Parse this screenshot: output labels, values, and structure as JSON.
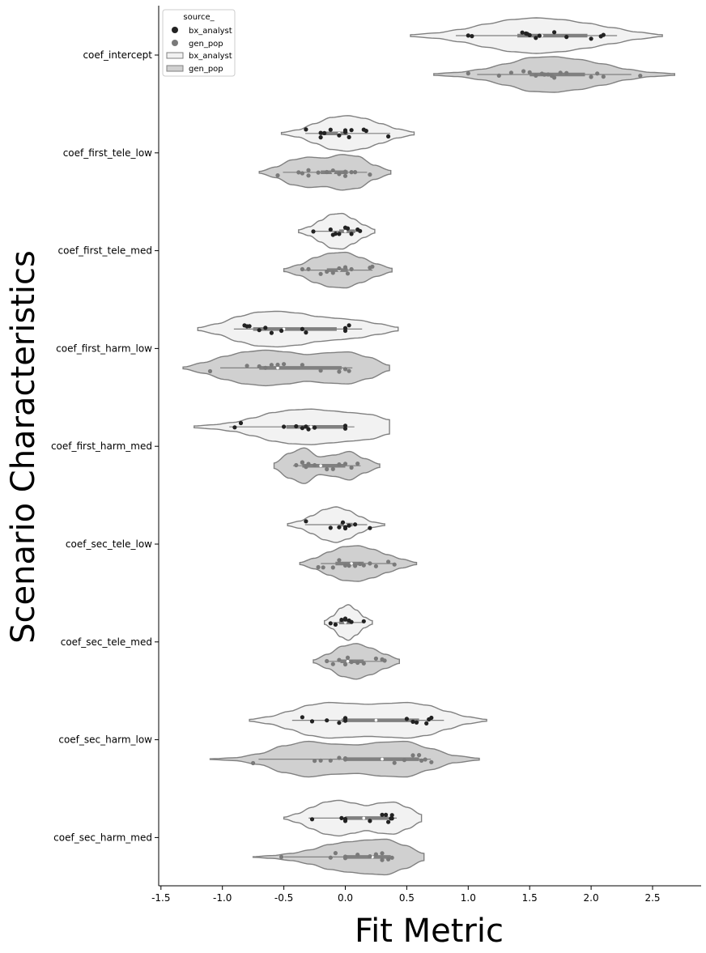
{
  "chart_data": {
    "type": "violin",
    "orientation": "horizontal",
    "xlabel": "Fit Metric",
    "ylabel": "Scenario Characteristics",
    "xlim": [
      -1.52,
      2.88
    ],
    "xticks": [
      "-1.5",
      "-1.0",
      "-0.5",
      "0.0",
      "0.5",
      "1.0",
      "1.5",
      "2.0",
      "2.5"
    ],
    "xtick_values": [
      -1.5,
      -1.0,
      -0.5,
      0.0,
      0.5,
      1.0,
      1.5,
      2.0,
      2.5
    ],
    "categories": [
      "coef_intercept",
      "coef_first_tele_low",
      "coef_first_tele_med",
      "coef_first_harm_low",
      "coef_first_harm_med",
      "coef_sec_tele_low",
      "coef_sec_tele_med",
      "coef_sec_harm_low",
      "coef_sec_harm_med"
    ],
    "legend": {
      "title": "source_",
      "placement": "top-left",
      "point_entries": [
        "bx_analyst",
        "gen_pop"
      ],
      "violin_entries": [
        "bx_analyst",
        "gen_pop"
      ]
    },
    "series": [
      {
        "name": "bx_analyst",
        "violin_color": "#f2f2f2",
        "point_color": "#222222",
        "groups": [
          {
            "range": [
              0.53,
              2.58
            ],
            "box": [
              1.4,
              1.97
            ],
            "median": 1.6,
            "half_widths": [
              0.05,
              0.15,
              0.35,
              0.65,
              0.9,
              1,
              0.9,
              0.7,
              0.45,
              0.2,
              0.05
            ],
            "points": [
              1.0,
              1.03,
              1.44,
              1.47,
              1.5,
              1.58,
              1.7,
              2.0,
              2.08,
              2.1,
              1.48,
              1.55,
              1.8
            ]
          },
          {
            "range": [
              -0.52,
              0.56
            ],
            "box": [
              -0.2,
              0.02
            ],
            "median": -0.05,
            "half_widths": [
              0.05,
              0.2,
              0.55,
              0.9,
              1,
              0.85,
              0.55,
              0.25,
              0.08
            ],
            "points": [
              -0.32,
              -0.2,
              -0.17,
              -0.12,
              -0.05,
              0.0,
              0.03,
              0.05,
              0.15,
              0.17,
              0.35,
              -0.2,
              0.0
            ]
          },
          {
            "range": [
              -0.38,
              0.24
            ],
            "box": [
              -0.05,
              0.08
            ],
            "median": 0.0,
            "half_widths": [
              0.08,
              0.25,
              0.6,
              0.95,
              1,
              0.7,
              0.35,
              0.1
            ],
            "points": [
              -0.26,
              -0.12,
              -0.08,
              -0.05,
              0.0,
              0.02,
              0.05,
              0.1,
              0.12,
              -0.1
            ]
          },
          {
            "range": [
              -1.2,
              0.43
            ],
            "box": [
              -0.75,
              -0.07
            ],
            "median": -0.5,
            "half_widths": [
              0.08,
              0.3,
              0.7,
              0.95,
              1,
              0.9,
              0.7,
              0.6,
              0.5,
              0.3,
              0.1
            ],
            "points": [
              -0.82,
              -0.8,
              -0.78,
              -0.7,
              -0.65,
              -0.6,
              -0.52,
              -0.35,
              -0.32,
              0.0,
              0.03,
              0.0
            ]
          },
          {
            "range": [
              -1.23,
              0.36
            ],
            "box": [
              -0.48,
              0.0
            ],
            "median": -0.28,
            "half_widths": [
              0.05,
              0.12,
              0.25,
              0.5,
              0.8,
              0.95,
              1,
              0.9,
              0.8,
              0.7,
              0.4
            ],
            "points": [
              -0.9,
              -0.85,
              -0.5,
              -0.4,
              -0.35,
              -0.3,
              -0.25,
              0.0,
              0.0,
              -0.32
            ]
          },
          {
            "range": [
              -0.47,
              0.32
            ],
            "box": [
              -0.04,
              0.06
            ],
            "median": 0.0,
            "half_widths": [
              0.06,
              0.2,
              0.5,
              0.85,
              1,
              0.8,
              0.45,
              0.15,
              0.05
            ],
            "points": [
              -0.32,
              -0.12,
              -0.05,
              -0.02,
              0.0,
              0.03,
              0.08,
              0.2,
              0.0
            ]
          },
          {
            "range": [
              -0.17,
              0.22
            ],
            "box": [
              -0.05,
              0.04
            ],
            "median": 0.0,
            "half_widths": [
              0.1,
              0.35,
              0.8,
              1,
              0.7,
              0.3,
              0.1
            ],
            "points": [
              -0.12,
              -0.08,
              -0.03,
              0.0,
              0.03,
              0.05,
              0.15,
              0.0
            ]
          },
          {
            "range": [
              -0.78,
              1.15
            ],
            "box": [
              -0.03,
              0.6
            ],
            "median": 0.25,
            "half_widths": [
              0.05,
              0.2,
              0.5,
              0.85,
              1,
              0.95,
              0.9,
              0.95,
              1,
              0.85,
              0.5,
              0.2,
              0.05
            ],
            "points": [
              -0.35,
              -0.27,
              -0.15,
              -0.05,
              0.0,
              0.0,
              0.0,
              0.5,
              0.55,
              0.58,
              0.68,
              0.7,
              0.66
            ]
          },
          {
            "range": [
              -0.5,
              0.62
            ],
            "box": [
              0.0,
              0.35
            ],
            "median": 0.15,
            "half_widths": [
              0.05,
              0.25,
              0.6,
              0.9,
              1,
              0.85,
              0.7,
              0.85,
              0.9,
              0.6,
              0.2
            ],
            "points": [
              -0.27,
              -0.03,
              0.0,
              0.0,
              0.2,
              0.3,
              0.33,
              0.37,
              0.38,
              0.38,
              0.35
            ]
          }
        ]
      },
      {
        "name": "gen_pop",
        "violin_color": "#d0d0d0",
        "point_color": "#7a7a7a",
        "groups": [
          {
            "range": [
              0.72,
              2.68
            ],
            "box": [
              1.5,
              1.95
            ],
            "median": 1.65,
            "half_widths": [
              0.05,
              0.12,
              0.3,
              0.6,
              0.95,
              1,
              0.85,
              0.6,
              0.3,
              0.12,
              0.05
            ],
            "points": [
              1.0,
              1.25,
              1.35,
              1.45,
              1.5,
              1.55,
              1.6,
              1.62,
              1.65,
              1.68,
              1.7,
              1.75,
              1.8,
              2.0,
              2.05,
              2.1,
              2.4
            ]
          },
          {
            "range": [
              -0.7,
              0.37
            ],
            "box": [
              -0.2,
              0.02
            ],
            "median": -0.1,
            "half_widths": [
              0.05,
              0.3,
              0.7,
              0.85,
              0.8,
              1,
              0.9,
              0.4,
              0.1
            ],
            "points": [
              -0.55,
              -0.38,
              -0.35,
              -0.3,
              -0.22,
              -0.15,
              -0.1,
              -0.05,
              0.0,
              0.0,
              0.05,
              0.08,
              0.2,
              -0.3
            ]
          },
          {
            "range": [
              -0.5,
              0.38
            ],
            "box": [
              -0.15,
              0.02
            ],
            "median": -0.05,
            "half_widths": [
              0.08,
              0.3,
              0.7,
              0.95,
              1,
              0.7,
              0.35,
              0.1
            ],
            "points": [
              -0.35,
              -0.3,
              -0.2,
              -0.15,
              -0.1,
              -0.05,
              0.0,
              0.02,
              0.05,
              0.2,
              0.22
            ]
          },
          {
            "range": [
              -1.32,
              0.36
            ],
            "box": [
              -0.7,
              -0.03
            ],
            "median": -0.55,
            "half_widths": [
              0.05,
              0.3,
              0.65,
              0.9,
              1,
              0.9,
              0.75,
              0.85,
              0.9,
              0.6,
              0.15
            ],
            "points": [
              -1.1,
              -0.8,
              -0.7,
              -0.65,
              -0.6,
              -0.55,
              -0.5,
              -0.35,
              -0.2,
              -0.05,
              0.0,
              0.03
            ]
          },
          {
            "range": [
              -0.58,
              0.28
            ],
            "box": [
              -0.35,
              0.0
            ],
            "median": -0.2,
            "half_widths": [
              0.15,
              0.7,
              1,
              0.5,
              0.6,
              0.8,
              0.4,
              0.1
            ],
            "points": [
              -0.4,
              -0.35,
              -0.32,
              -0.3,
              -0.25,
              -0.15,
              -0.1,
              -0.05,
              0.0,
              0.05,
              0.1,
              -0.35
            ]
          },
          {
            "range": [
              -0.37,
              0.58
            ],
            "box": [
              -0.08,
              0.15
            ],
            "median": 0.05,
            "half_widths": [
              0.06,
              0.3,
              0.65,
              0.95,
              1,
              0.8,
              0.5,
              0.25,
              0.06
            ],
            "points": [
              -0.22,
              -0.18,
              -0.1,
              -0.05,
              0.0,
              0.03,
              0.08,
              0.12,
              0.15,
              0.2,
              0.25,
              0.35,
              0.4
            ]
          },
          {
            "range": [
              -0.26,
              0.44
            ],
            "box": [
              -0.04,
              0.15
            ],
            "median": 0.02,
            "half_widths": [
              0.08,
              0.4,
              0.85,
              1,
              0.75,
              0.4,
              0.12
            ],
            "points": [
              -0.15,
              -0.1,
              -0.05,
              0.0,
              0.02,
              0.05,
              0.1,
              0.15,
              0.25,
              0.3,
              0.32
            ]
          },
          {
            "range": [
              -1.1,
              1.09
            ],
            "box": [
              0.0,
              0.6
            ],
            "median": 0.3,
            "half_widths": [
              0.02,
              0.08,
              0.3,
              0.75,
              1,
              0.85,
              0.8,
              0.95,
              1,
              0.6,
              0.2,
              0.05
            ],
            "points": [
              -0.75,
              -0.25,
              -0.2,
              -0.12,
              -0.05,
              0.0,
              0.0,
              0.4,
              0.48,
              0.55,
              0.6,
              0.62,
              0.65,
              0.7
            ]
          },
          {
            "range": [
              -0.75,
              0.64
            ],
            "box": [
              0.0,
              0.37
            ],
            "median": 0.22,
            "half_widths": [
              0.02,
              0.08,
              0.2,
              0.4,
              0.7,
              0.85,
              0.95,
              1,
              0.65,
              0.2
            ],
            "points": [
              -0.52,
              -0.12,
              -0.08,
              0.0,
              0.0,
              0.1,
              0.2,
              0.25,
              0.3,
              0.35,
              0.38,
              0.3
            ]
          }
        ]
      }
    ]
  }
}
